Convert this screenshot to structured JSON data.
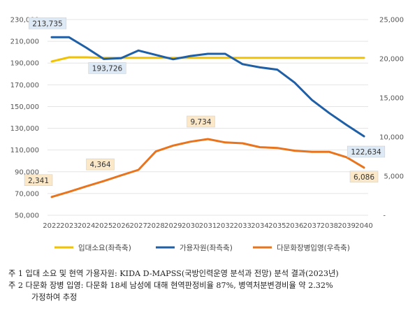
{
  "chart_data": {
    "type": "line",
    "x": [
      "2022",
      "2023",
      "2024",
      "2025",
      "2026",
      "2027",
      "2028",
      "2029",
      "2030",
      "2031",
      "2032",
      "2033",
      "2034",
      "2035",
      "2036",
      "2037",
      "2038",
      "2039",
      "2040"
    ],
    "y_left": {
      "ylim": [
        50000,
        230000
      ],
      "ticks": [
        "50,000",
        "70,000",
        "90,000",
        "110,000",
        "130,000",
        "150,000",
        "170,000",
        "190,000",
        "210,000",
        "230,000"
      ]
    },
    "y_right": {
      "ylim": [
        0,
        25000
      ],
      "ticks": [
        "-",
        "5,000",
        "10,000",
        "15,000",
        "20,000",
        "25,000"
      ]
    },
    "series": [
      {
        "name": "입대소요(좌측축)",
        "axis": "left",
        "color": "#F2C200",
        "values": [
          191500,
          195300,
          195300,
          194800,
          194800,
          194800,
          194800,
          194800,
          194800,
          194800,
          194800,
          194800,
          194800,
          194800,
          194800,
          194800,
          194800,
          194800,
          194800
        ]
      },
      {
        "name": "가용자원(좌측축)",
        "axis": "left",
        "color": "#1F5FA6",
        "values": [
          213735,
          213735,
          204000,
          193726,
          194500,
          201500,
          197500,
          193500,
          196500,
          198500,
          198500,
          189000,
          186000,
          184000,
          172000,
          156000,
          144000,
          133000,
          122634
        ]
      },
      {
        "name": "다문화장병입영(우측축)",
        "axis": "right",
        "color": "#E8741E",
        "values": [
          2341,
          3000,
          3700,
          4364,
          5100,
          5800,
          8150,
          8900,
          9400,
          9734,
          9300,
          9200,
          8700,
          8600,
          8250,
          8100,
          8100,
          7400,
          6086
        ]
      }
    ],
    "callouts": [
      {
        "text": "213,735",
        "series": 1,
        "index": 0
      },
      {
        "text": "193,726",
        "series": 1,
        "index": 3
      },
      {
        "text": "122,634",
        "series": 1,
        "index": 18
      },
      {
        "text": "2,341",
        "series": 2,
        "index": 0
      },
      {
        "text": "4,364",
        "series": 2,
        "index": 3
      },
      {
        "text": "9,734",
        "series": 2,
        "index": 9
      },
      {
        "text": "6,086",
        "series": 2,
        "index": 18
      }
    ]
  },
  "notes": [
    "주 1 입대 소요 및 현역 가용자원: KIDA D-MAPSS(국방인력운영 분석과 전망) 분석 결과(2023년)",
    "주 2 다문화 장병 입영: 다문화 18세 남성에 대해 현역판정비율 87%, 병역처분변경비율 약 2.32%",
    "가정하여 추정"
  ]
}
